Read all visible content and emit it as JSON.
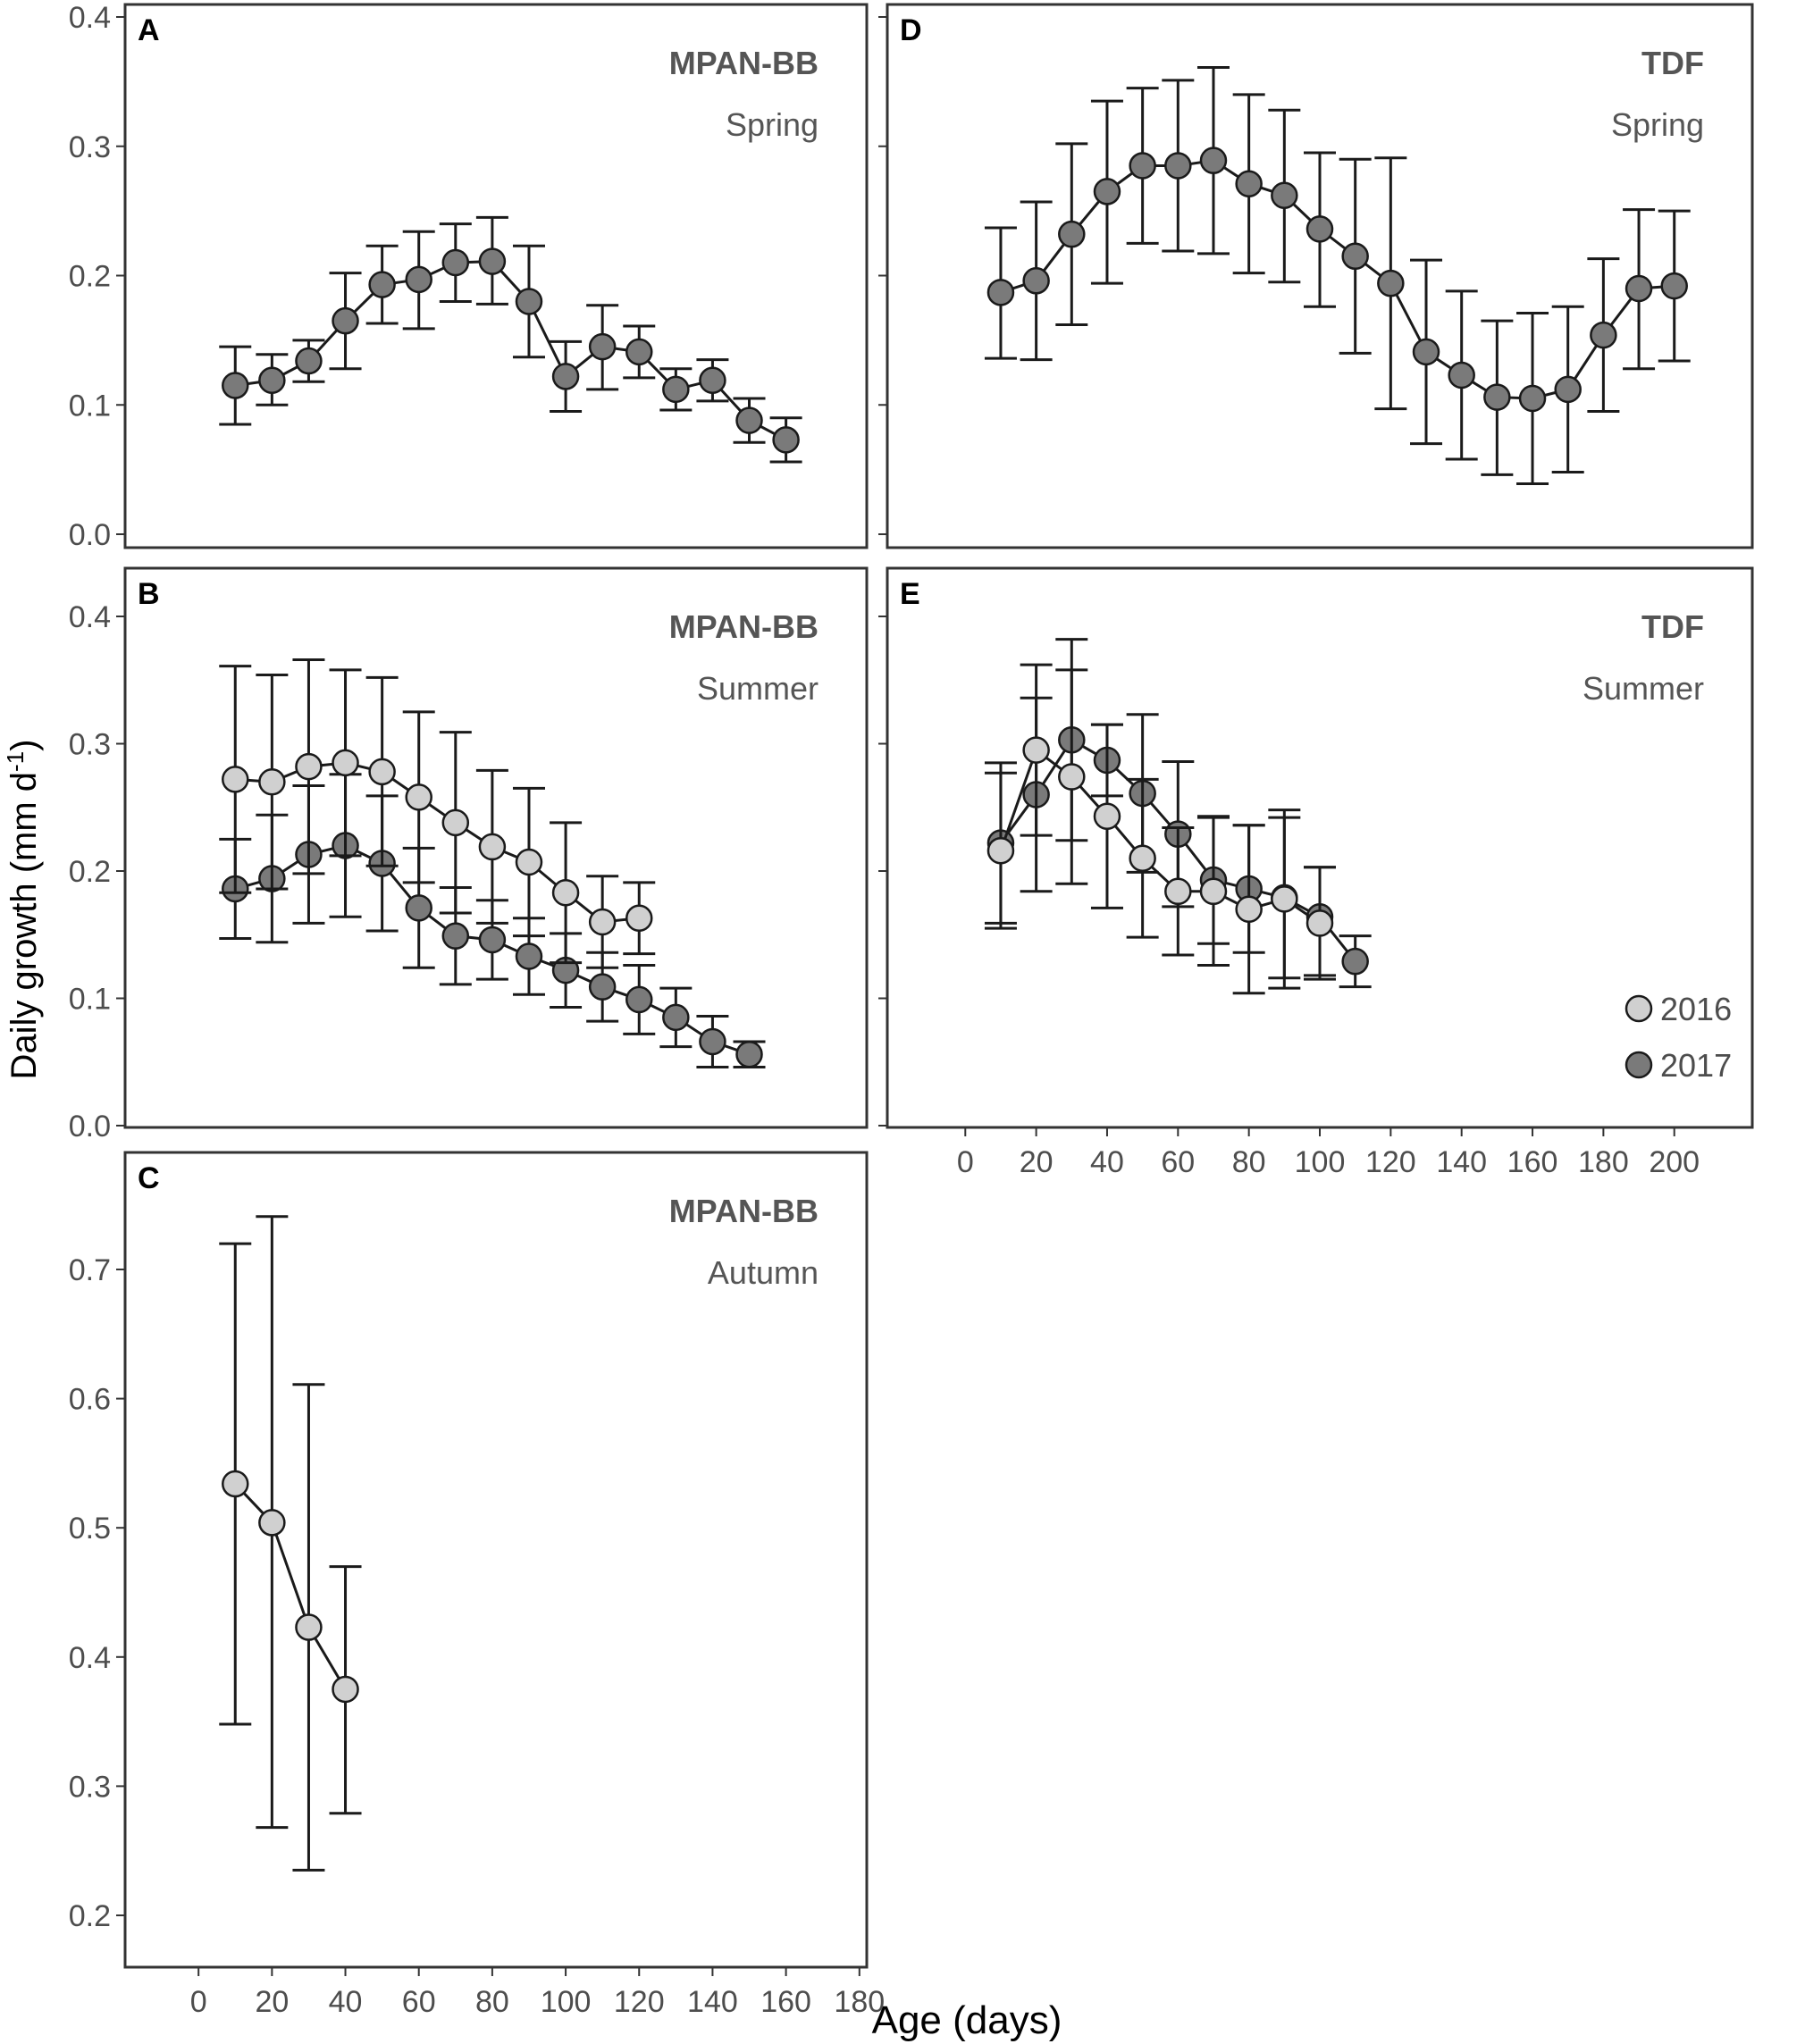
{
  "figure": {
    "ylabel": "Daily growth (mm d",
    "ylabel_sup": "-1",
    "ylabel_close": ")",
    "xlabel": "Age (days)"
  },
  "colors": {
    "y2016": "#d0d0d0",
    "y2017": "#7a7a7a",
    "stroke": "#1a1a1a",
    "title": "#555555",
    "axis_text": "#4d4d4d"
  },
  "chart_data": [
    {
      "panel": "A",
      "type": "line",
      "site": "MPAN-BB",
      "season": "Spring",
      "xlabel": "Age (days)",
      "ylabel": "Daily growth (mm d-1)",
      "ylim": [
        0,
        0.4
      ],
      "yticks": [
        0.0,
        0.1,
        0.2,
        0.3,
        0.4
      ],
      "ytick_labels": [
        "0.0",
        "0.1",
        "0.2",
        "0.3",
        "0.4"
      ],
      "xticks": [],
      "xlim": [
        -20,
        182
      ],
      "series": [
        {
          "name": "2017",
          "x": [
            10,
            20,
            30,
            40,
            50,
            60,
            70,
            80,
            90,
            100,
            110,
            120,
            130,
            140,
            150,
            160
          ],
          "y": [
            0.115,
            0.119,
            0.134,
            0.165,
            0.193,
            0.197,
            0.21,
            0.211,
            0.18,
            0.122,
            0.145,
            0.141,
            0.112,
            0.119,
            0.088,
            0.073
          ],
          "ylow": [
            0.085,
            0.1,
            0.118,
            0.128,
            0.163,
            0.159,
            0.18,
            0.178,
            0.137,
            0.095,
            0.112,
            0.121,
            0.096,
            0.103,
            0.071,
            0.056
          ],
          "yhigh": [
            0.145,
            0.139,
            0.15,
            0.202,
            0.223,
            0.234,
            0.24,
            0.245,
            0.223,
            0.149,
            0.177,
            0.161,
            0.128,
            0.135,
            0.105,
            0.09
          ]
        }
      ]
    },
    {
      "panel": "B",
      "type": "line",
      "site": "MPAN-BB",
      "season": "Summer",
      "xlabel": "Age (days)",
      "ylabel": "Daily growth (mm d-1)",
      "ylim": [
        0,
        0.4
      ],
      "yticks": [
        0.0,
        0.1,
        0.2,
        0.3,
        0.4
      ],
      "ytick_labels": [
        "0.0",
        "0.1",
        "0.2",
        "0.3",
        "0.4"
      ],
      "xticks": [],
      "xlim": [
        -20,
        182
      ],
      "series": [
        {
          "name": "2017",
          "x": [
            10,
            20,
            30,
            40,
            50,
            60,
            70,
            80,
            90,
            100,
            110,
            120,
            130,
            140,
            150
          ],
          "y": [
            0.186,
            0.194,
            0.213,
            0.22,
            0.206,
            0.171,
            0.149,
            0.146,
            0.133,
            0.122,
            0.109,
            0.099,
            0.085,
            0.066,
            0.056
          ],
          "ylow": [
            0.147,
            0.144,
            0.159,
            0.164,
            0.153,
            0.124,
            0.111,
            0.115,
            0.103,
            0.093,
            0.082,
            0.072,
            0.062,
            0.046,
            0.046
          ],
          "yhigh": [
            0.225,
            0.244,
            0.267,
            0.276,
            0.259,
            0.218,
            0.187,
            0.177,
            0.163,
            0.151,
            0.136,
            0.126,
            0.108,
            0.086,
            0.066
          ]
        },
        {
          "name": "2016",
          "x": [
            10,
            20,
            30,
            40,
            50,
            60,
            70,
            80,
            90,
            100,
            110,
            120
          ],
          "y": [
            0.272,
            0.27,
            0.282,
            0.285,
            0.278,
            0.258,
            0.238,
            0.219,
            0.207,
            0.183,
            0.16,
            0.163
          ],
          "ylow": [
            0.183,
            0.186,
            0.198,
            0.212,
            0.204,
            0.191,
            0.167,
            0.159,
            0.149,
            0.128,
            0.124,
            0.135
          ],
          "yhigh": [
            0.361,
            0.354,
            0.366,
            0.358,
            0.352,
            0.325,
            0.309,
            0.279,
            0.265,
            0.238,
            0.196,
            0.191
          ]
        }
      ]
    },
    {
      "panel": "C",
      "type": "line",
      "site": "MPAN-BB",
      "season": "Autumn",
      "xlabel": "Age (days)",
      "ylabel": "Daily growth (mm d-1)",
      "ylim": [
        0.185,
        0.78
      ],
      "yticks": [
        0.2,
        0.3,
        0.4,
        0.5,
        0.6,
        0.7
      ],
      "ytick_labels": [
        "0.2",
        "0.3",
        "0.4",
        "0.5",
        "0.6",
        "0.7"
      ],
      "xticks": [
        0,
        20,
        40,
        60,
        80,
        100,
        120,
        140,
        160,
        180
      ],
      "xlim": [
        -20,
        182
      ],
      "series": [
        {
          "name": "2016",
          "x": [
            10,
            20,
            30,
            40
          ],
          "y": [
            0.534,
            0.504,
            0.423,
            0.375
          ],
          "ylow": [
            0.348,
            0.268,
            0.235,
            0.279
          ],
          "yhigh": [
            0.72,
            0.741,
            0.611,
            0.47
          ]
        }
      ]
    },
    {
      "panel": "D",
      "type": "line",
      "site": "TDF",
      "season": "Spring",
      "xlabel": "Age (days)",
      "ylabel": "Daily growth (mm d-1)",
      "ylim": [
        0,
        0.4
      ],
      "yticks": [
        0.0,
        0.1,
        0.2,
        0.3,
        0.4
      ],
      "ytick_labels": [],
      "xticks": [],
      "xlim": [
        -22,
        222
      ],
      "series": [
        {
          "name": "2017",
          "x": [
            10,
            20,
            30,
            40,
            50,
            60,
            70,
            80,
            90,
            100,
            110,
            120,
            130,
            140,
            150,
            160,
            170,
            180,
            190,
            200
          ],
          "y": [
            0.187,
            0.196,
            0.232,
            0.265,
            0.285,
            0.285,
            0.289,
            0.271,
            0.262,
            0.236,
            0.215,
            0.194,
            0.141,
            0.123,
            0.106,
            0.105,
            0.112,
            0.154,
            0.19,
            0.192
          ],
          "ylow": [
            0.136,
            0.135,
            0.162,
            0.194,
            0.225,
            0.219,
            0.217,
            0.202,
            0.195,
            0.176,
            0.14,
            0.097,
            0.07,
            0.058,
            0.046,
            0.039,
            0.048,
            0.095,
            0.128,
            0.134
          ],
          "yhigh": [
            0.237,
            0.257,
            0.302,
            0.335,
            0.345,
            0.351,
            0.361,
            0.34,
            0.328,
            0.295,
            0.29,
            0.291,
            0.212,
            0.188,
            0.165,
            0.171,
            0.176,
            0.213,
            0.251,
            0.25
          ]
        }
      ]
    },
    {
      "panel": "E",
      "type": "line",
      "site": "TDF",
      "season": "Summer",
      "xlabel": "Age (days)",
      "ylabel": "Daily growth (mm d-1)",
      "ylim": [
        0,
        0.4
      ],
      "yticks": [
        0.0,
        0.1,
        0.2,
        0.3,
        0.4
      ],
      "ytick_labels": [],
      "xticks": [
        0,
        20,
        40,
        60,
        80,
        100,
        120,
        140,
        160,
        180,
        200
      ],
      "xlim": [
        -22,
        222
      ],
      "legend": {
        "position": "bottom-right",
        "entries": [
          "2016",
          "2017"
        ]
      },
      "series": [
        {
          "name": "2017",
          "x": [
            10,
            20,
            30,
            40,
            50,
            60,
            70,
            80,
            90,
            100,
            110
          ],
          "y": [
            0.222,
            0.26,
            0.303,
            0.287,
            0.261,
            0.229,
            0.193,
            0.186,
            0.179,
            0.164,
            0.129
          ],
          "ylow": [
            0.159,
            0.184,
            0.224,
            0.259,
            0.199,
            0.172,
            0.143,
            0.136,
            0.116,
            0.118,
            0.109
          ],
          "yhigh": [
            0.285,
            0.336,
            0.382,
            0.315,
            0.323,
            0.286,
            0.243,
            0.236,
            0.242,
            0.203,
            0.149
          ]
        },
        {
          "name": "2016",
          "x": [
            10,
            20,
            30,
            40,
            50,
            60,
            70,
            80,
            90,
            100
          ],
          "y": [
            0.216,
            0.295,
            0.274,
            0.243,
            0.21,
            0.184,
            0.184,
            0.17,
            0.178,
            0.159
          ],
          "ylow": [
            0.155,
            0.228,
            0.19,
            0.171,
            0.148,
            0.134,
            0.126,
            0.104,
            0.108,
            0.115
          ],
          "yhigh": [
            0.277,
            0.362,
            0.358,
            0.315,
            0.272,
            0.234,
            0.242,
            0.236,
            0.248,
            0.203
          ]
        }
      ]
    }
  ]
}
